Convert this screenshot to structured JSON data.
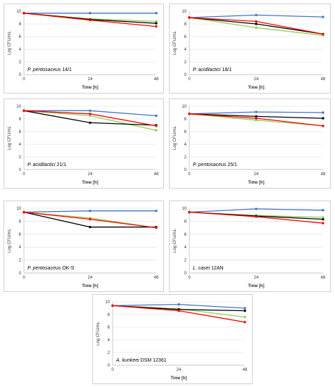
{
  "chart_data": [
    {
      "type": "line",
      "title_genus": "P. pentosaceus",
      "title_strain": "14/1",
      "xlabel": "Time [h]",
      "ylabel": "Log CFU/mL",
      "x": [
        0,
        24,
        48
      ],
      "xticks": [
        "0",
        "24",
        "48"
      ],
      "ylim": [
        0,
        10
      ],
      "yticks": [
        "0",
        "2",
        "4",
        "6",
        "8",
        "10"
      ],
      "series": [
        {
          "color": "#4472c4",
          "values": [
            9.7,
            9.7,
            9.7
          ]
        },
        {
          "color": "#92d050",
          "values": [
            9.7,
            8.8,
            8.4
          ]
        },
        {
          "color": "#000000",
          "values": [
            9.7,
            8.7,
            8.1
          ]
        },
        {
          "color": "#ff0000",
          "values": [
            9.7,
            8.6,
            7.6
          ]
        }
      ]
    },
    {
      "type": "line",
      "title_genus": "P. acidilactici",
      "title_strain": "18/1",
      "xlabel": "Time [h]",
      "ylabel": "Log CFU/mL",
      "x": [
        0,
        24,
        48
      ],
      "xticks": [
        "0",
        "24",
        "48"
      ],
      "ylim": [
        0,
        10
      ],
      "yticks": [
        "0",
        "2",
        "4",
        "6",
        "8",
        "10"
      ],
      "series": [
        {
          "color": "#4472c4",
          "values": [
            9.0,
            9.4,
            9.1
          ]
        },
        {
          "color": "#92d050",
          "values": [
            9.0,
            7.4,
            6.2
          ]
        },
        {
          "color": "#000000",
          "values": [
            9.0,
            8.0,
            6.4
          ]
        },
        {
          "color": "#ff0000",
          "values": [
            9.0,
            8.4,
            6.4
          ]
        }
      ]
    },
    {
      "type": "line",
      "title_genus": "P. acidilactici",
      "title_strain": "21/1",
      "xlabel": "Time [h]",
      "ylabel": "Log CFU/mL",
      "x": [
        0,
        24,
        48
      ],
      "xticks": [
        "0",
        "24",
        "48"
      ],
      "ylim": [
        0,
        10
      ],
      "yticks": [
        "0",
        "2",
        "4",
        "6",
        "8",
        "10"
      ],
      "series": [
        {
          "color": "#4472c4",
          "values": [
            9.3,
            9.3,
            8.5
          ]
        },
        {
          "color": "#92d050",
          "values": [
            9.3,
            8.5,
            6.2
          ]
        },
        {
          "color": "#000000",
          "values": [
            9.3,
            7.4,
            7.0
          ]
        },
        {
          "color": "#ff0000",
          "values": [
            9.3,
            8.8,
            6.9
          ]
        }
      ]
    },
    {
      "type": "line",
      "title_genus": "P. pentosaceus",
      "title_strain": "25/1",
      "xlabel": "Time [h]",
      "ylabel": "Log CFU/mL",
      "x": [
        0,
        24,
        48
      ],
      "xticks": [
        "0",
        "24",
        "48"
      ],
      "ylim": [
        0,
        10
      ],
      "yticks": [
        "0",
        "2",
        "4",
        "6",
        "8",
        "10"
      ],
      "series": [
        {
          "color": "#4472c4",
          "values": [
            8.8,
            9.1,
            9.0
          ]
        },
        {
          "color": "#92d050",
          "values": [
            8.8,
            7.8,
            6.9
          ]
        },
        {
          "color": "#000000",
          "values": [
            8.8,
            8.4,
            8.1
          ]
        },
        {
          "color": "#ff0000",
          "values": [
            8.8,
            8.1,
            6.9
          ]
        }
      ]
    },
    {
      "type": "line",
      "title_genus": "P. pentosaceus",
      "title_strain": "OK-S",
      "xlabel": "Time [h]",
      "ylabel": "Log CFU/mL",
      "x": [
        0,
        24,
        48
      ],
      "xticks": [
        "0",
        "24",
        "48"
      ],
      "ylim": [
        0,
        10
      ],
      "yticks": [
        "0",
        "2",
        "4",
        "6",
        "8",
        "10"
      ],
      "series": [
        {
          "color": "#4472c4",
          "values": [
            9.4,
            9.6,
            9.6
          ]
        },
        {
          "color": "#92d050",
          "values": [
            9.4,
            8.5,
            7.0
          ]
        },
        {
          "color": "#000000",
          "values": [
            9.4,
            7.1,
            7.1
          ]
        },
        {
          "color": "#ff0000",
          "values": [
            9.4,
            8.3,
            7.0
          ]
        }
      ]
    },
    {
      "type": "line",
      "title_genus": "L. casei",
      "title_strain": "12AN",
      "xlabel": "Time [h]",
      "ylabel": "Log CFU/mL",
      "x": [
        0,
        24,
        48
      ],
      "xticks": [
        "0",
        "24",
        "48"
      ],
      "ylim": [
        0,
        10
      ],
      "yticks": [
        "0",
        "2",
        "4",
        "6",
        "8",
        "10"
      ],
      "series": [
        {
          "color": "#4472c4",
          "values": [
            9.4,
            9.9,
            9.7
          ]
        },
        {
          "color": "#92d050",
          "values": [
            9.4,
            8.9,
            8.6
          ]
        },
        {
          "color": "#000000",
          "values": [
            9.4,
            8.8,
            8.3
          ]
        },
        {
          "color": "#ff0000",
          "values": [
            9.4,
            8.7,
            7.7
          ]
        }
      ]
    },
    {
      "type": "line",
      "title_genus": "A. kunkeei",
      "title_strain": "DSM 12361",
      "xlabel": "Time [h]",
      "ylabel": "Log CFU/mL",
      "x": [
        0,
        24,
        48
      ],
      "xticks": [
        "0",
        "24",
        "48"
      ],
      "ylim": [
        0,
        10
      ],
      "yticks": [
        "0",
        "2",
        "4",
        "6",
        "8",
        "10"
      ],
      "series": [
        {
          "color": "#4472c4",
          "values": [
            9.4,
            9.6,
            9.0
          ]
        },
        {
          "color": "#92d050",
          "values": [
            9.4,
            8.9,
            7.6
          ]
        },
        {
          "color": "#000000",
          "values": [
            9.4,
            8.8,
            8.6
          ]
        },
        {
          "color": "#ff0000",
          "values": [
            9.4,
            8.6,
            6.8
          ]
        }
      ]
    }
  ]
}
